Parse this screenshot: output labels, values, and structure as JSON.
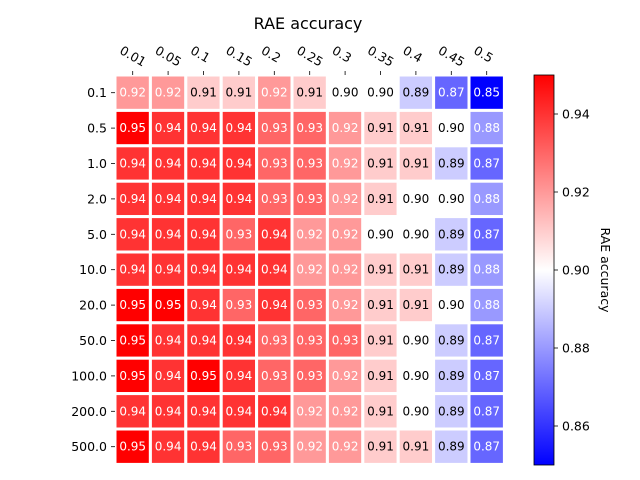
{
  "chart_data": {
    "type": "heatmap",
    "title": "RAE accuracy",
    "x_tick_labels": [
      "0.01",
      "0.05",
      "0.1",
      "0.15",
      "0.2",
      "0.25",
      "0.3",
      "0.35",
      "0.4",
      "0.45",
      "0.5"
    ],
    "y_tick_labels": [
      "0.1",
      "0.5",
      "1.0",
      "2.0",
      "5.0",
      "10.0",
      "20.0",
      "50.0",
      "100.0",
      "200.0",
      "500.0"
    ],
    "values": [
      [
        0.92,
        0.92,
        0.91,
        0.91,
        0.92,
        0.91,
        0.9,
        0.9,
        0.89,
        0.87,
        0.85
      ],
      [
        0.95,
        0.94,
        0.94,
        0.94,
        0.93,
        0.93,
        0.92,
        0.91,
        0.91,
        0.9,
        0.88
      ],
      [
        0.94,
        0.94,
        0.94,
        0.94,
        0.93,
        0.93,
        0.92,
        0.91,
        0.91,
        0.89,
        0.87
      ],
      [
        0.94,
        0.94,
        0.94,
        0.94,
        0.93,
        0.93,
        0.92,
        0.91,
        0.9,
        0.9,
        0.88
      ],
      [
        0.94,
        0.94,
        0.94,
        0.93,
        0.94,
        0.92,
        0.92,
        0.9,
        0.9,
        0.89,
        0.87
      ],
      [
        0.94,
        0.94,
        0.94,
        0.94,
        0.94,
        0.92,
        0.92,
        0.91,
        0.91,
        0.89,
        0.88
      ],
      [
        0.95,
        0.95,
        0.94,
        0.93,
        0.94,
        0.93,
        0.92,
        0.91,
        0.91,
        0.9,
        0.88
      ],
      [
        0.95,
        0.94,
        0.94,
        0.94,
        0.93,
        0.93,
        0.93,
        0.91,
        0.9,
        0.89,
        0.87
      ],
      [
        0.95,
        0.94,
        0.95,
        0.94,
        0.93,
        0.93,
        0.92,
        0.91,
        0.9,
        0.89,
        0.87
      ],
      [
        0.94,
        0.94,
        0.94,
        0.94,
        0.94,
        0.92,
        0.92,
        0.91,
        0.9,
        0.89,
        0.87
      ],
      [
        0.95,
        0.94,
        0.94,
        0.93,
        0.93,
        0.92,
        0.92,
        0.91,
        0.91,
        0.89,
        0.87
      ]
    ],
    "colormap": "bwr",
    "vmin": 0.85,
    "vmax": 0.95,
    "colorbar": {
      "label": "RAE accuracy",
      "ticks": [
        0.86,
        0.88,
        0.9,
        0.92,
        0.94
      ],
      "tick_labels": [
        "0.86",
        "0.88",
        "0.90",
        "0.92",
        "0.94"
      ]
    },
    "x_ticks_position": "top",
    "grid": false,
    "cell_separator_color": "#ffffff"
  }
}
